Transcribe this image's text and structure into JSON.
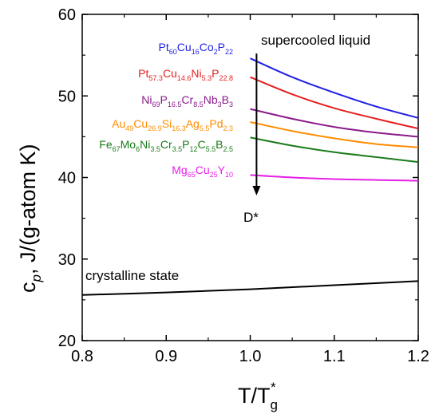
{
  "chart_data": {
    "type": "line",
    "xlabel": "T/T",
    "xlabel_sub": "g",
    "xlabel_sup": "*",
    "ylabel": "c",
    "ylabel_sub": "p",
    "ylabel_rest": ", J/(g-atom K)",
    "xlim": [
      0.8,
      1.2
    ],
    "ylim": [
      20,
      60
    ],
    "x_ticks": [
      "0.8",
      "0.9",
      "1.0",
      "1.1",
      "1.2"
    ],
    "y_ticks": [
      "20",
      "30",
      "40",
      "50",
      "60"
    ],
    "grid": false,
    "annotations": {
      "liquid": "supercooled liquid",
      "crystal": "crystalline state",
      "arrow_label": "D*"
    },
    "series": [
      {
        "name": "Pt60Cu16Co2P22",
        "label_parts": [
          [
            "Pt",
            ""
          ],
          [
            "60",
            "sub"
          ],
          [
            "Cu",
            ""
          ],
          [
            "16",
            "sub"
          ],
          [
            "Co",
            ""
          ],
          [
            "2",
            "sub"
          ],
          [
            "P",
            ""
          ],
          [
            "22",
            "sub"
          ]
        ],
        "color": "#1f1fe6",
        "x": [
          1.0,
          1.05,
          1.1,
          1.15,
          1.2
        ],
        "y": [
          54.6,
          52.3,
          50.4,
          48.7,
          47.3
        ]
      },
      {
        "name": "Pt57.3Cu14.6Ni5.3P22.8",
        "label_parts": [
          [
            "Pt",
            ""
          ],
          [
            "57.3",
            "sub"
          ],
          [
            "Cu",
            ""
          ],
          [
            "14.6",
            "sub"
          ],
          [
            "Ni",
            ""
          ],
          [
            "5.3",
            "sub"
          ],
          [
            "P",
            ""
          ],
          [
            "22.8",
            "sub"
          ]
        ],
        "color": "#e61f1f",
        "x": [
          1.0,
          1.05,
          1.1,
          1.15,
          1.2
        ],
        "y": [
          52.3,
          50.2,
          48.5,
          47.2,
          46.0
        ]
      },
      {
        "name": "Ni69P16.5Cr8.5Nb3B3",
        "label_parts": [
          [
            "Ni",
            ""
          ],
          [
            "69",
            "sub"
          ],
          [
            "P",
            ""
          ],
          [
            "16.5",
            "sub"
          ],
          [
            "Cr",
            ""
          ],
          [
            "8.5",
            "sub"
          ],
          [
            "Nb",
            ""
          ],
          [
            "3",
            "sub"
          ],
          [
            "B",
            ""
          ],
          [
            "3",
            "sub"
          ]
        ],
        "color": "#8b1a8b",
        "x": [
          1.0,
          1.05,
          1.1,
          1.15,
          1.2
        ],
        "y": [
          48.4,
          47.2,
          46.2,
          45.5,
          45.0
        ]
      },
      {
        "name": "Au49Cu26.9Si16.3Ag5.5Pd2.3",
        "label_parts": [
          [
            "Au",
            ""
          ],
          [
            "49",
            "sub"
          ],
          [
            "Cu",
            ""
          ],
          [
            "26.9",
            "sub"
          ],
          [
            "Si",
            ""
          ],
          [
            "16.3",
            "sub"
          ],
          [
            "Ag",
            ""
          ],
          [
            "5.5",
            "sub"
          ],
          [
            "Pd",
            ""
          ],
          [
            "2.3",
            "sub"
          ]
        ],
        "color": "#ff8c00",
        "x": [
          1.0,
          1.05,
          1.1,
          1.15,
          1.2
        ],
        "y": [
          46.8,
          45.7,
          44.8,
          44.1,
          43.7
        ]
      },
      {
        "name": "Fe67Mo6Ni3.5Cr3.5P12C5.5B2.5",
        "label_parts": [
          [
            "Fe",
            ""
          ],
          [
            "67",
            "sub"
          ],
          [
            "Mo",
            ""
          ],
          [
            "6",
            "sub"
          ],
          [
            "Ni",
            ""
          ],
          [
            "3.5",
            "sub"
          ],
          [
            "Cr",
            ""
          ],
          [
            "3.5",
            "sub"
          ],
          [
            "P",
            ""
          ],
          [
            "12",
            "sub"
          ],
          [
            "C",
            ""
          ],
          [
            "5.5",
            "sub"
          ],
          [
            "B",
            ""
          ],
          [
            "2.5",
            "sub"
          ]
        ],
        "color": "#1a7a1a",
        "x": [
          1.0,
          1.05,
          1.1,
          1.15,
          1.2
        ],
        "y": [
          44.9,
          43.9,
          43.1,
          42.5,
          41.9
        ]
      },
      {
        "name": "Mg65Cu25Y10",
        "label_parts": [
          [
            "Mg",
            ""
          ],
          [
            "65",
            "sub"
          ],
          [
            "Cu",
            ""
          ],
          [
            "25",
            "sub"
          ],
          [
            "Y",
            ""
          ],
          [
            "10",
            "sub"
          ]
        ],
        "color": "#e61fe6",
        "x": [
          1.0,
          1.05,
          1.1,
          1.15,
          1.2
        ],
        "y": [
          40.3,
          40.0,
          39.8,
          39.7,
          39.6
        ]
      },
      {
        "name": "crystalline state",
        "label_parts": [],
        "color": "#000000",
        "x": [
          0.8,
          0.9,
          1.0,
          1.1,
          1.2
        ],
        "y": [
          25.6,
          25.9,
          26.3,
          26.8,
          27.3
        ]
      }
    ]
  }
}
